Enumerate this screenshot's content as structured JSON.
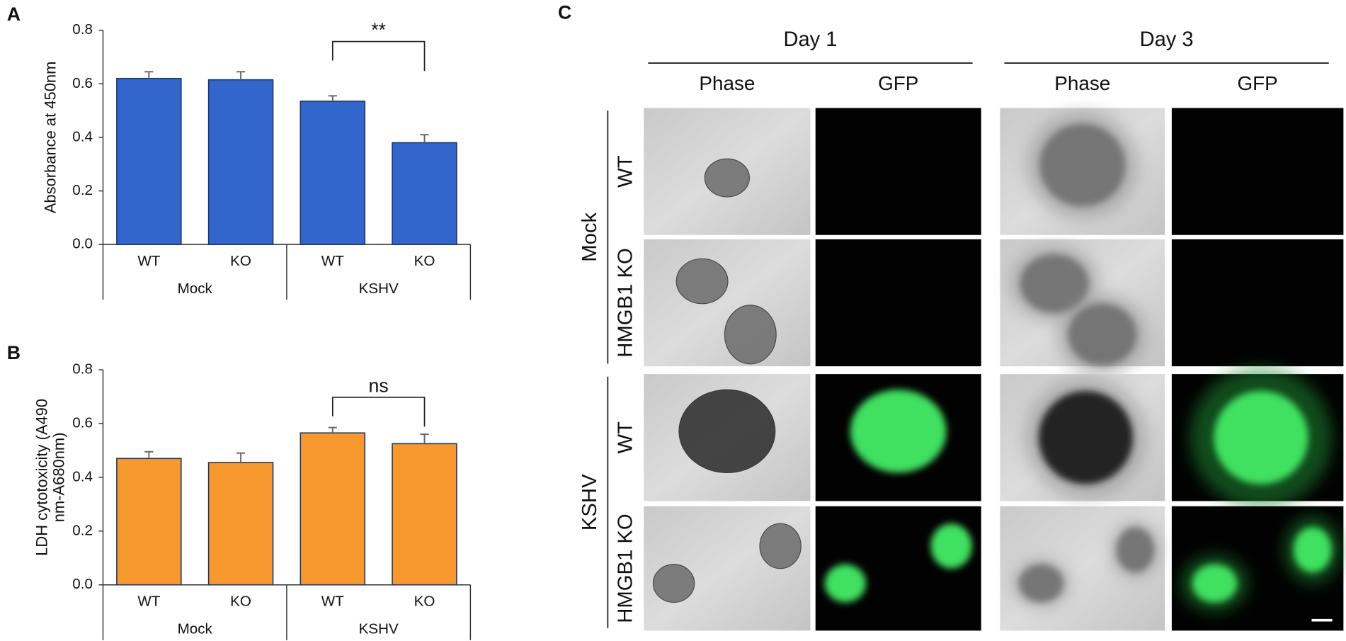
{
  "chart_data": [
    {
      "panel": "A",
      "type": "bar",
      "y_label": [
        "Absorbance at 450nm"
      ],
      "categories": [
        "WT",
        "KO",
        "WT",
        "KO"
      ],
      "groups": [
        "Mock",
        "KSHV"
      ],
      "series": [
        {
          "color": "#3366cc",
          "values": [
            0.62,
            0.615,
            0.535,
            0.38
          ],
          "errors": [
            0.025,
            0.03,
            0.02,
            0.03
          ]
        }
      ],
      "ylim": [
        0,
        0.8
      ],
      "yticks": [
        {
          "value": 0,
          "label": "0.0"
        },
        0.2,
        0.4,
        0.6,
        0.8
      ],
      "annotation": "**"
    },
    {
      "panel": "B",
      "type": "bar",
      "y_label": [
        "LDH cytotoxicity (A490",
        "nm-A680nm)"
      ],
      "categories": [
        "WT",
        "KO",
        "WT",
        "KO"
      ],
      "groups": [
        "Mock",
        "KSHV"
      ],
      "series": [
        {
          "color": "#f7992f",
          "values": [
            0.47,
            0.455,
            0.565,
            0.525
          ],
          "errors": [
            0.025,
            0.035,
            0.02,
            0.035
          ]
        }
      ],
      "ylim": [
        0,
        0.8
      ],
      "yticks": [
        {
          "value": 0,
          "label": "0.0"
        },
        0.2,
        0.4,
        0.6,
        0.8
      ],
      "annotation": "ns"
    }
  ],
  "panel_c": {
    "label": "C",
    "days": [
      {
        "title": "Day 1",
        "columns": [
          "Phase",
          "GFP"
        ]
      },
      {
        "title": "Day 3",
        "columns": [
          "Phase",
          "GFP"
        ]
      }
    ],
    "groups": [
      {
        "name": "Mock",
        "rows": [
          "WT",
          "HMGB1 KO"
        ]
      },
      {
        "name": "KSHV",
        "rows": [
          "WT",
          "HMGB1 KO"
        ]
      }
    ]
  }
}
